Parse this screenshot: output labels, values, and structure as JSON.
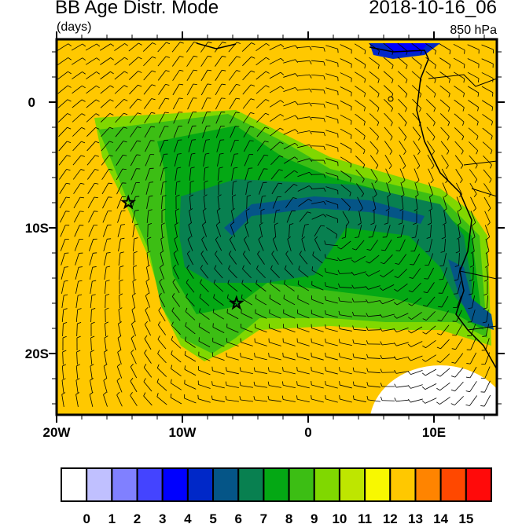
{
  "header": {
    "title": "BB Age Distr. Mode",
    "date": "2018-10-16_06",
    "units": "(days)",
    "level": "850 hPa"
  },
  "map": {
    "lon_labels": [
      "20W",
      "10W",
      "0",
      "10E"
    ],
    "lat_labels": [
      "0",
      "10S",
      "20S"
    ],
    "lon_range": [
      -20,
      15
    ],
    "lat_range": [
      -25,
      5
    ],
    "markers": [
      {
        "type": "star",
        "lon": -14.3,
        "lat": -8
      },
      {
        "type": "star",
        "lon": -5.7,
        "lat": -16
      }
    ]
  },
  "colorbar": {
    "labels": [
      "0",
      "1",
      "2",
      "3",
      "4",
      "5",
      "6",
      "7",
      "8",
      "9",
      "10",
      "11",
      "12",
      "13",
      "14",
      "15"
    ],
    "colors": [
      "#FFFFFF",
      "#C0C0FF",
      "#8080FF",
      "#4444FF",
      "#0000FF",
      "#0028C8",
      "#055587",
      "#088050",
      "#04A814",
      "#3CBE14",
      "#80D800",
      "#BEE600",
      "#F8F800",
      "#FFC800",
      "#FF8400",
      "#FF4800",
      "#FF0A0A"
    ]
  }
}
